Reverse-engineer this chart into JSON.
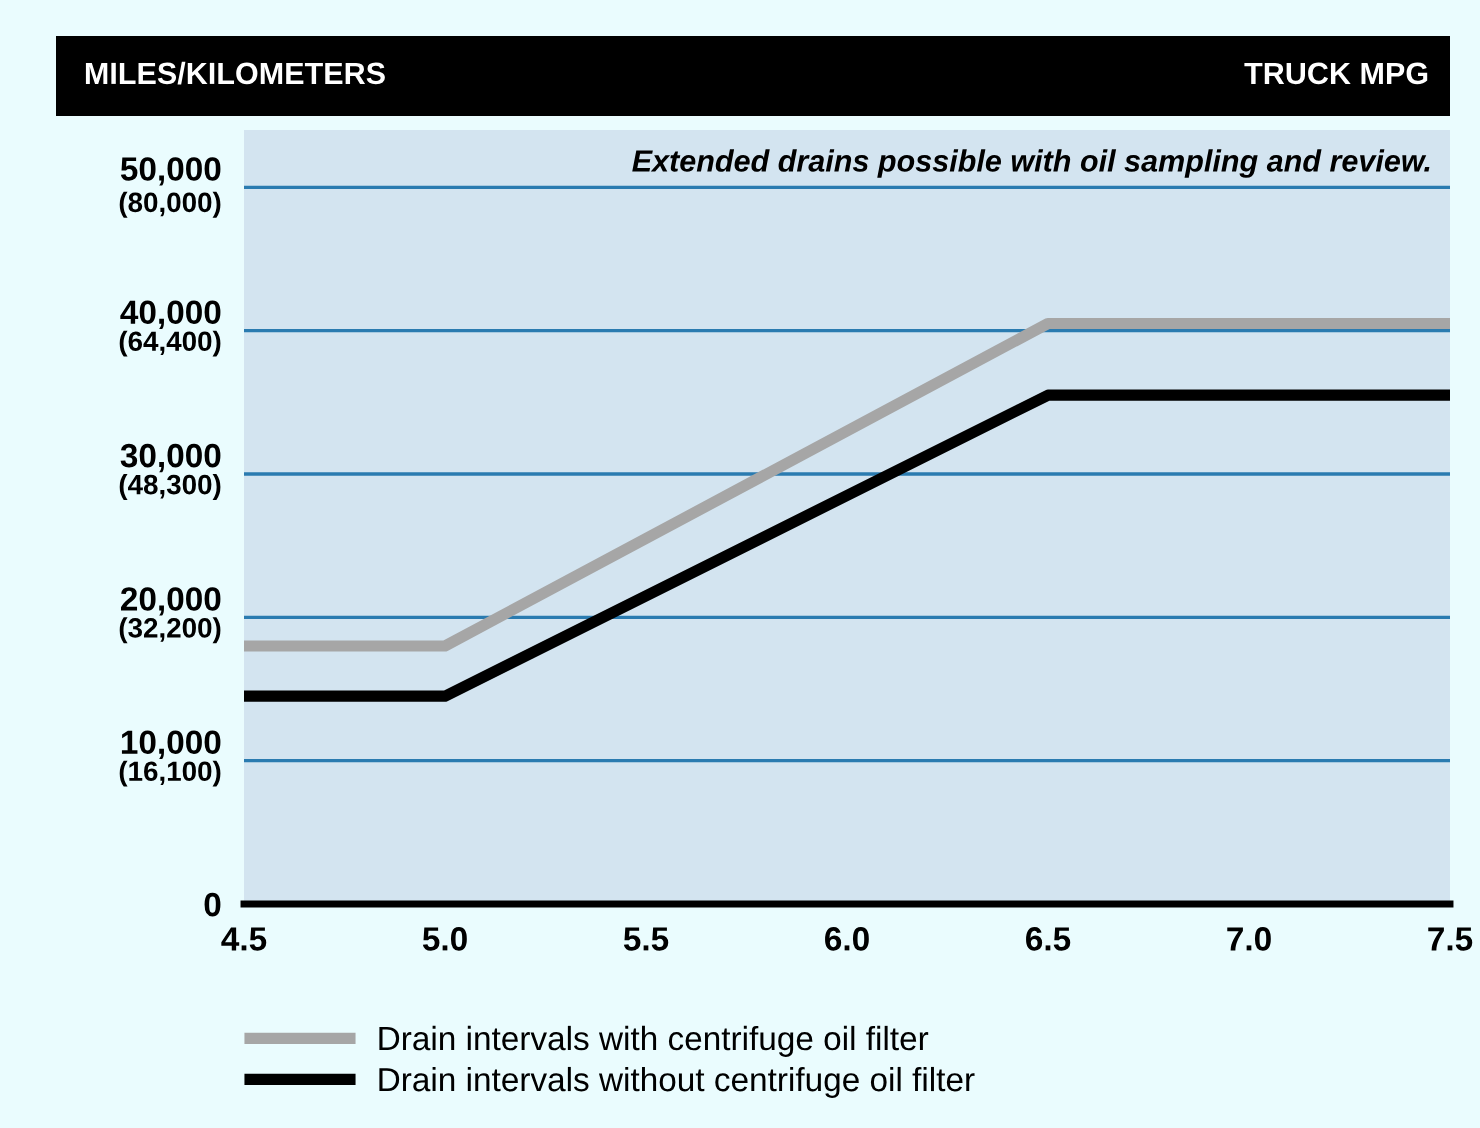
{
  "chart_data": {
    "type": "line",
    "xlabel": "TRUCK MPG",
    "ylabel": "MILES/KILOMETERS",
    "annotations": [
      "Extended drains possible with oil sampling and review."
    ],
    "x": [
      4.5,
      5.0,
      6.5,
      7.5
    ],
    "series": [
      {
        "name": "Drain intervals with centrifuge oil filter",
        "color": "#a6a6a6",
        "values": [
          18000,
          18000,
          40500,
          40500
        ]
      },
      {
        "name": "Drain intervals without centrifuge oil filter",
        "color": "#000000",
        "values": [
          14500,
          14500,
          35500,
          35500
        ]
      }
    ],
    "xlim": [
      4.5,
      7.5
    ],
    "xticks": [
      {
        "value": 4.5,
        "label": "4.5"
      },
      {
        "value": 5.0,
        "label": "5.0"
      },
      {
        "value": 5.5,
        "label": "5.5"
      },
      {
        "value": 6.0,
        "label": "6.0"
      },
      {
        "value": 6.5,
        "label": "6.5"
      },
      {
        "value": 7.0,
        "label": "7.0"
      },
      {
        "value": 7.5,
        "label": "7.5"
      }
    ],
    "ylim": [
      0,
      54000
    ],
    "yticks": [
      0,
      {
        "value": 10000,
        "label": "10,000"
      },
      {
        "value": 20000,
        "label": "20,000"
      },
      {
        "value": 30000,
        "label": "30,000"
      },
      {
        "value": 40000,
        "label": "40,000"
      },
      {
        "value": 50000,
        "label": "50,000"
      }
    ],
    "y2lim": [
      0,
      86940
    ],
    "y2ticks": [
      {
        "value": 16100,
        "label": "(16,100)"
      },
      {
        "value": 32200,
        "label": "(32,200)"
      },
      {
        "value": 48300,
        "label": "(48,300)"
      },
      {
        "value": 64400,
        "label": "(64,400)"
      },
      {
        "value": 80000,
        "label": "(80,000)"
      }
    ],
    "grid": "y",
    "legend": "bottom",
    "line_style": "solid",
    "marker": "none"
  }
}
